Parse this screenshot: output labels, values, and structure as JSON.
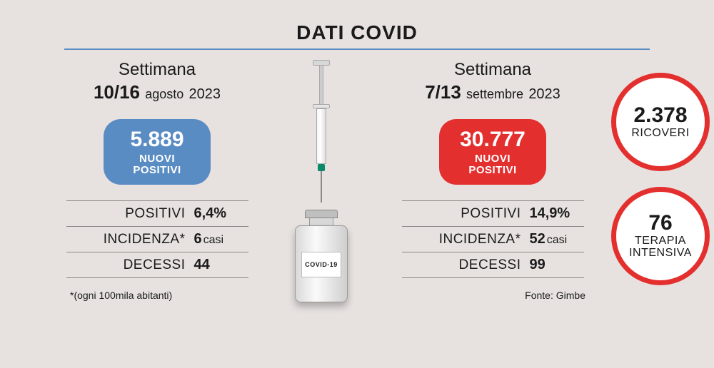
{
  "title": "DATI COVID",
  "rule_color": "#5a8cc4",
  "background_color": "#e7e2e0",
  "left": {
    "week_label": "Settimana",
    "date_days": "10/16",
    "date_month": "agosto",
    "date_year": "2023",
    "badge": {
      "value": "5.889",
      "label_line1": "NUOVI",
      "label_line2": "POSITIVI",
      "bg_color": "#5a8cc4"
    },
    "stats": {
      "positivi_label": "POSITIVI",
      "positivi_value": "6,4%",
      "incidenza_label": "INCIDENZA*",
      "incidenza_value": "6",
      "incidenza_unit": "casi",
      "decessi_label": "DECESSI",
      "decessi_value": "44"
    },
    "footnote": "*(ogni 100mila abitanti)"
  },
  "right": {
    "week_label": "Settimana",
    "date_days": "7/13",
    "date_month": "settembre",
    "date_year": "2023",
    "badge": {
      "value": "30.777",
      "label_line1": "NUOVI",
      "label_line2": "POSITIVI",
      "bg_color": "#e3302f"
    },
    "stats": {
      "positivi_label": "POSITIVI",
      "positivi_value": "14,9%",
      "incidenza_label": "INCIDENZA*",
      "incidenza_value": "52",
      "incidenza_unit": "casi",
      "decessi_label": "DECESSI",
      "decessi_value": "99"
    },
    "source": "Fonte: Gimbe"
  },
  "side": {
    "ring_color": "#e3302f",
    "ring_width": 7,
    "ricoveri": {
      "value": "2.378",
      "label": "RICOVERI"
    },
    "ti": {
      "value": "76",
      "label_line1": "TERAPIA",
      "label_line2": "INTENSIVA"
    }
  },
  "vial_label": "COVID-19"
}
